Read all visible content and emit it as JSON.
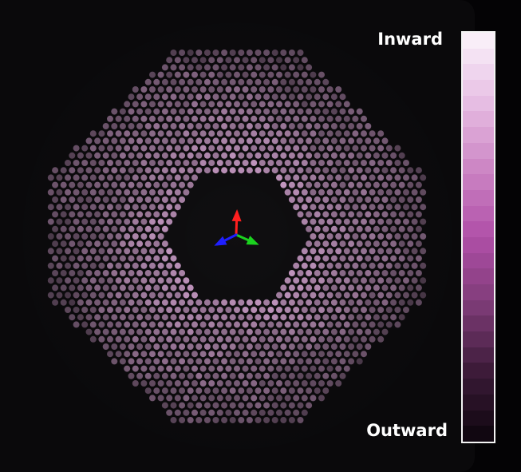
{
  "legend": {
    "top_label": "Inward",
    "bottom_label": "Outward",
    "colorbar_stops": [
      "#fbf4fb",
      "#e7bfe4",
      "#cc85c4",
      "#b04fa8",
      "#7d3b76",
      "#3a1a37",
      "#0c050c"
    ],
    "colorbar_band_count": 26
  },
  "scene": {
    "background_color": "#0a090b",
    "dot_base_color": "#c99ac6",
    "axes": {
      "x_color": "#16d21a",
      "y_color": "#ff1a1a",
      "z_color": "#1a1aff"
    }
  }
}
